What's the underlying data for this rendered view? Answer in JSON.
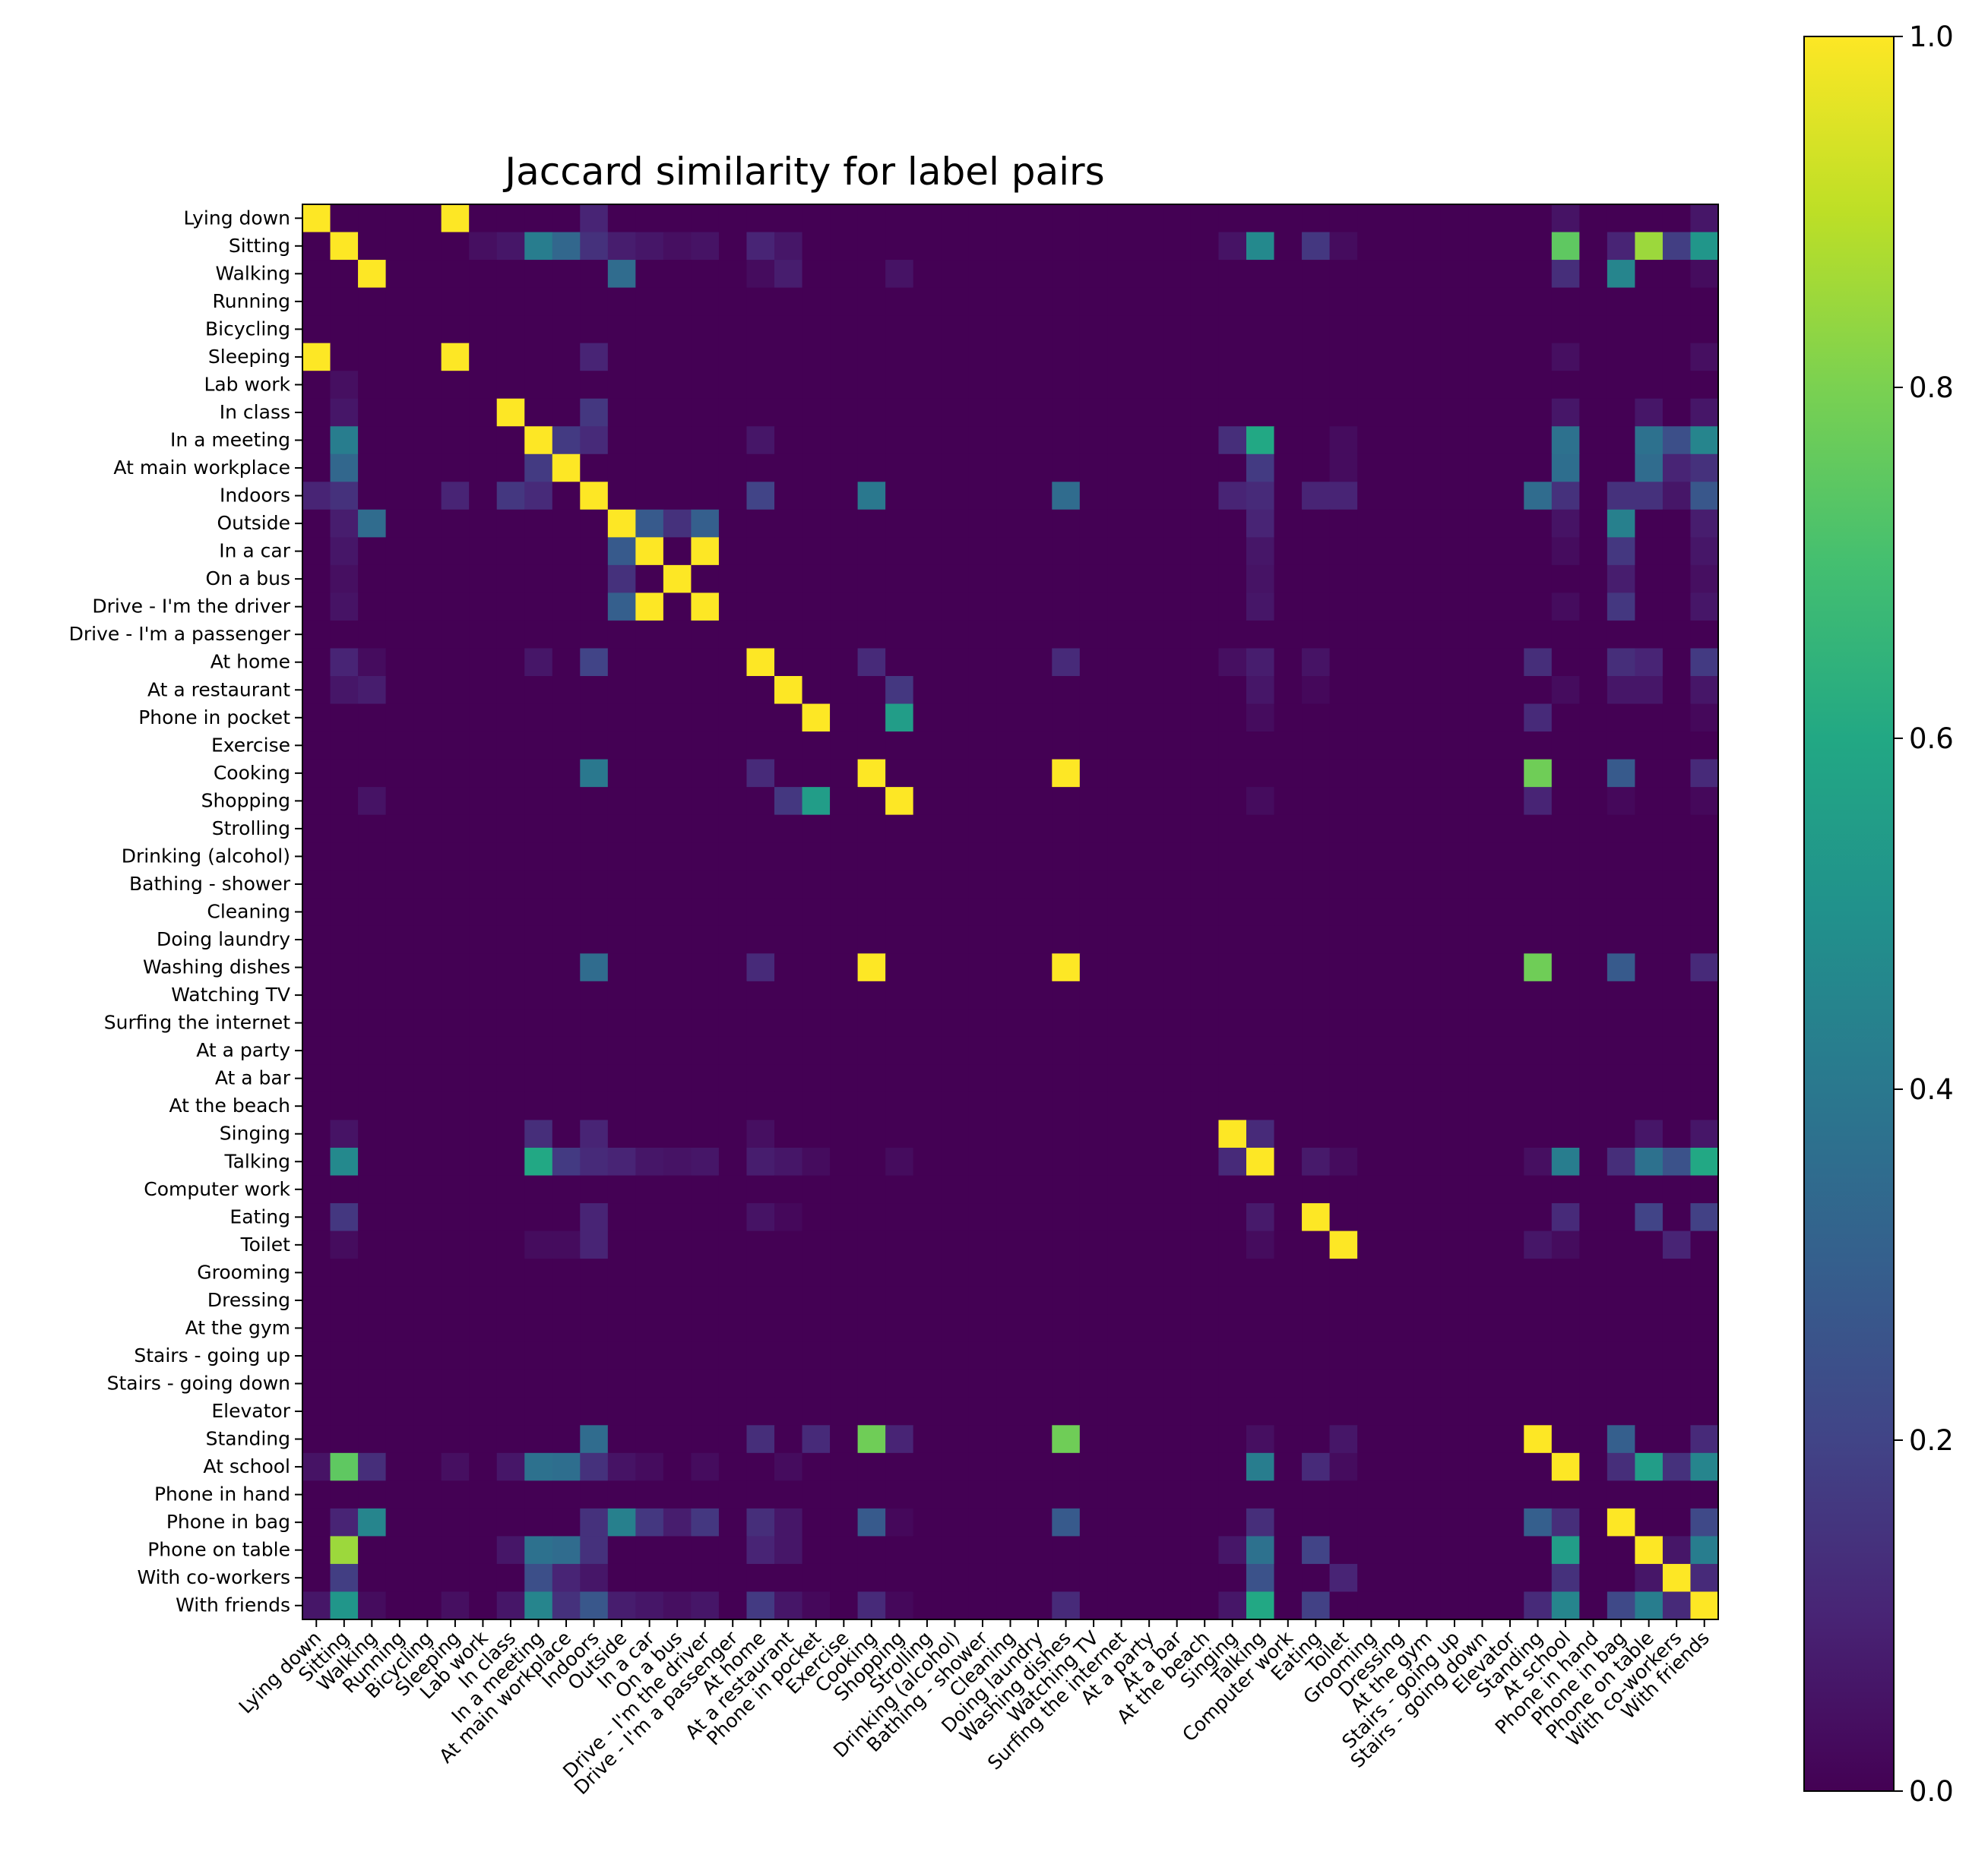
{
  "chart_data": {
    "type": "heatmap",
    "title": "Jaccard similarity for label pairs",
    "xlabel": "",
    "ylabel": "",
    "labels": [
      "Lying down",
      "Sitting",
      "Walking",
      "Running",
      "Bicycling",
      "Sleeping",
      "Lab work",
      "In class",
      "In a meeting",
      "At main workplace",
      "Indoors",
      "Outside",
      "In a car",
      "On a bus",
      "Drive - I'm the driver",
      "Drive - I'm a passenger",
      "At home",
      "At a restaurant",
      "Phone in pocket",
      "Exercise",
      "Cooking",
      "Shopping",
      "Strolling",
      "Drinking (alcohol)",
      "Bathing - shower",
      "Cleaning",
      "Doing laundry",
      "Washing dishes",
      "Watching TV",
      "Surfing the internet",
      "At a party",
      "At a bar",
      "At the beach",
      "Singing",
      "Talking",
      "Computer work",
      "Eating",
      "Toilet",
      "Grooming",
      "Dressing",
      "At the gym",
      "Stairs - going up",
      "Stairs - going down",
      "Elevator",
      "Standing",
      "At school",
      "Phone in hand",
      "Phone in bag",
      "Phone on table",
      "With co-workers",
      "With friends"
    ],
    "colormap": "viridis",
    "colorbar": {
      "min": 0,
      "max": 1,
      "ticks": [
        "0.0",
        "0.2",
        "0.4",
        "0.6",
        "0.8",
        "1.0"
      ]
    },
    "diagonal": 1.0,
    "diagonal_exceptions": [
      "Running",
      "Bicycling",
      "Lab work",
      "Drive - I'm a passenger",
      "Exercise",
      "Strolling",
      "Drinking (alcohol)",
      "Bathing - shower",
      "Cleaning",
      "Doing laundry",
      "Watching TV",
      "Surfing the internet",
      "At a party",
      "At a bar",
      "At the beach",
      "Computer work",
      "Grooming",
      "Dressing",
      "At the gym",
      "Stairs - going up",
      "Stairs - going down",
      "Elevator",
      "Phone in hand"
    ],
    "pairs": [
      [
        "Lying down",
        "Sleeping",
        1.0
      ],
      [
        "Lying down",
        "Indoors",
        0.1
      ],
      [
        "Lying down",
        "At school",
        0.05
      ],
      [
        "Lying down",
        "With friends",
        0.06
      ],
      [
        "Sitting",
        "Lab work",
        0.04
      ],
      [
        "Sitting",
        "In class",
        0.06
      ],
      [
        "Sitting",
        "In a meeting",
        0.42
      ],
      [
        "Sitting",
        "At main workplace",
        0.33
      ],
      [
        "Sitting",
        "Indoors",
        0.14
      ],
      [
        "Sitting",
        "Outside",
        0.08
      ],
      [
        "Sitting",
        "In a car",
        0.06
      ],
      [
        "Sitting",
        "On a bus",
        0.04
      ],
      [
        "Sitting",
        "Drive - I'm the driver",
        0.05
      ],
      [
        "Sitting",
        "At home",
        0.1
      ],
      [
        "Sitting",
        "At a restaurant",
        0.06
      ],
      [
        "Sitting",
        "Singing",
        0.05
      ],
      [
        "Sitting",
        "Talking",
        0.47
      ],
      [
        "Sitting",
        "Eating",
        0.16
      ],
      [
        "Sitting",
        "Toilet",
        0.03
      ],
      [
        "Sitting",
        "At school",
        0.75
      ],
      [
        "Sitting",
        "Phone in bag",
        0.1
      ],
      [
        "Sitting",
        "Phone on table",
        0.85
      ],
      [
        "Sitting",
        "With co-workers",
        0.18
      ],
      [
        "Sitting",
        "With friends",
        0.52
      ],
      [
        "Walking",
        "Outside",
        0.35
      ],
      [
        "Walking",
        "At home",
        0.03
      ],
      [
        "Walking",
        "At a restaurant",
        0.08
      ],
      [
        "Walking",
        "Shopping",
        0.05
      ],
      [
        "Walking",
        "At school",
        0.13
      ],
      [
        "Walking",
        "Phone in bag",
        0.45
      ],
      [
        "Walking",
        "With friends",
        0.03
      ],
      [
        "Sleeping",
        "Indoors",
        0.1
      ],
      [
        "Sleeping",
        "At school",
        0.04
      ],
      [
        "Sleeping",
        "With friends",
        0.04
      ],
      [
        "In class",
        "Indoors",
        0.16
      ],
      [
        "In class",
        "At school",
        0.06
      ],
      [
        "In class",
        "Phone on table",
        0.06
      ],
      [
        "In class",
        "With friends",
        0.06
      ],
      [
        "In a meeting",
        "At main workplace",
        0.17
      ],
      [
        "In a meeting",
        "Indoors",
        0.12
      ],
      [
        "In a meeting",
        "At home",
        0.06
      ],
      [
        "In a meeting",
        "Singing",
        0.13
      ],
      [
        "In a meeting",
        "Talking",
        0.6
      ],
      [
        "In a meeting",
        "Toilet",
        0.03
      ],
      [
        "In a meeting",
        "At school",
        0.37
      ],
      [
        "In a meeting",
        "Phone on table",
        0.37
      ],
      [
        "In a meeting",
        "With co-workers",
        0.24
      ],
      [
        "In a meeting",
        "With friends",
        0.45
      ],
      [
        "At main workplace",
        "Talking",
        0.17
      ],
      [
        "At main workplace",
        "Toilet",
        0.03
      ],
      [
        "At main workplace",
        "At school",
        0.36
      ],
      [
        "At main workplace",
        "Phone on table",
        0.35
      ],
      [
        "At main workplace",
        "With co-workers",
        0.1
      ],
      [
        "At main workplace",
        "With friends",
        0.14
      ],
      [
        "Indoors",
        "At home",
        0.2
      ],
      [
        "Indoors",
        "Cooking",
        0.4
      ],
      [
        "Indoors",
        "Washing dishes",
        0.35
      ],
      [
        "Indoors",
        "Singing",
        0.1
      ],
      [
        "Indoors",
        "Talking",
        0.12
      ],
      [
        "Indoors",
        "Eating",
        0.1
      ],
      [
        "Indoors",
        "Toilet",
        0.1
      ],
      [
        "Indoors",
        "Standing",
        0.35
      ],
      [
        "Indoors",
        "At school",
        0.14
      ],
      [
        "Indoors",
        "Phone in bag",
        0.14
      ],
      [
        "Indoors",
        "Phone on table",
        0.14
      ],
      [
        "Indoors",
        "With co-workers",
        0.06
      ],
      [
        "Indoors",
        "With friends",
        0.27
      ],
      [
        "Outside",
        "In a car",
        0.28
      ],
      [
        "Outside",
        "On a bus",
        0.14
      ],
      [
        "Outside",
        "Drive - I'm the driver",
        0.3
      ],
      [
        "Outside",
        "Talking",
        0.1
      ],
      [
        "Outside",
        "At school",
        0.05
      ],
      [
        "Outside",
        "Phone in bag",
        0.43
      ],
      [
        "Outside",
        "With friends",
        0.08
      ],
      [
        "In a car",
        "Drive - I'm the driver",
        1.0
      ],
      [
        "In a car",
        "Talking",
        0.06
      ],
      [
        "In a car",
        "At school",
        0.03
      ],
      [
        "In a car",
        "Phone in bag",
        0.16
      ],
      [
        "In a car",
        "With friends",
        0.06
      ],
      [
        "On a bus",
        "Talking",
        0.05
      ],
      [
        "On a bus",
        "Phone in bag",
        0.08
      ],
      [
        "On a bus",
        "With friends",
        0.04
      ],
      [
        "Drive - I'm the driver",
        "Talking",
        0.06
      ],
      [
        "Drive - I'm the driver",
        "At school",
        0.03
      ],
      [
        "Drive - I'm the driver",
        "Phone in bag",
        0.16
      ],
      [
        "Drive - I'm the driver",
        "With friends",
        0.06
      ],
      [
        "At home",
        "Cooking",
        0.12
      ],
      [
        "At home",
        "Washing dishes",
        0.12
      ],
      [
        "At home",
        "Singing",
        0.04
      ],
      [
        "At home",
        "Talking",
        0.08
      ],
      [
        "At home",
        "Eating",
        0.05
      ],
      [
        "At home",
        "Standing",
        0.13
      ],
      [
        "At home",
        "Phone in bag",
        0.13
      ],
      [
        "At home",
        "Phone on table",
        0.1
      ],
      [
        "At home",
        "With friends",
        0.17
      ],
      [
        "At a restaurant",
        "Shopping",
        0.16
      ],
      [
        "At a restaurant",
        "Talking",
        0.06
      ],
      [
        "At a restaurant",
        "Eating",
        0.02
      ],
      [
        "At a restaurant",
        "At school",
        0.03
      ],
      [
        "At a restaurant",
        "Phone in bag",
        0.06
      ],
      [
        "At a restaurant",
        "Phone on table",
        0.06
      ],
      [
        "At a restaurant",
        "With friends",
        0.06
      ],
      [
        "Phone in pocket",
        "Shopping",
        0.55
      ],
      [
        "Phone in pocket",
        "Talking",
        0.03
      ],
      [
        "Phone in pocket",
        "Standing",
        0.12
      ],
      [
        "Phone in pocket",
        "With friends",
        0.02
      ],
      [
        "Cooking",
        "Washing dishes",
        1.0
      ],
      [
        "Cooking",
        "Standing",
        0.78
      ],
      [
        "Cooking",
        "Phone in bag",
        0.28
      ],
      [
        "Cooking",
        "With friends",
        0.12
      ],
      [
        "Shopping",
        "Talking",
        0.03
      ],
      [
        "Shopping",
        "Standing",
        0.1
      ],
      [
        "Shopping",
        "Phone in bag",
        0.02
      ],
      [
        "Shopping",
        "With friends",
        0.02
      ],
      [
        "Washing dishes",
        "Standing",
        0.78
      ],
      [
        "Washing dishes",
        "Phone in bag",
        0.28
      ],
      [
        "Washing dishes",
        "With friends",
        0.12
      ],
      [
        "Singing",
        "Talking",
        0.12
      ],
      [
        "Singing",
        "Phone on table",
        0.06
      ],
      [
        "Singing",
        "With friends",
        0.06
      ],
      [
        "Talking",
        "Eating",
        0.07
      ],
      [
        "Talking",
        "Toilet",
        0.03
      ],
      [
        "Talking",
        "Standing",
        0.04
      ],
      [
        "Talking",
        "At school",
        0.42
      ],
      [
        "Talking",
        "Phone in bag",
        0.13
      ],
      [
        "Talking",
        "Phone on table",
        0.37
      ],
      [
        "Talking",
        "With co-workers",
        0.25
      ],
      [
        "Talking",
        "With friends",
        0.6
      ],
      [
        "Eating",
        "At school",
        0.12
      ],
      [
        "Eating",
        "Phone on table",
        0.2
      ],
      [
        "Eating",
        "With friends",
        0.19
      ],
      [
        "Toilet",
        "Standing",
        0.06
      ],
      [
        "Toilet",
        "At school",
        0.03
      ],
      [
        "Toilet",
        "With co-workers",
        0.1
      ],
      [
        "Standing",
        "Phone in bag",
        0.3
      ],
      [
        "Standing",
        "With friends",
        0.12
      ],
      [
        "At school",
        "Phone in bag",
        0.13
      ],
      [
        "At school",
        "Phone on table",
        0.55
      ],
      [
        "At school",
        "With co-workers",
        0.14
      ],
      [
        "At school",
        "With friends",
        0.45
      ],
      [
        "Phone in bag",
        "Phone on table",
        0.0
      ],
      [
        "Phone in bag",
        "With friends",
        0.22
      ],
      [
        "Phone on table",
        "With co-workers",
        0.06
      ],
      [
        "Phone on table",
        "With friends",
        0.42
      ],
      [
        "With co-workers",
        "With friends",
        0.12
      ]
    ]
  }
}
